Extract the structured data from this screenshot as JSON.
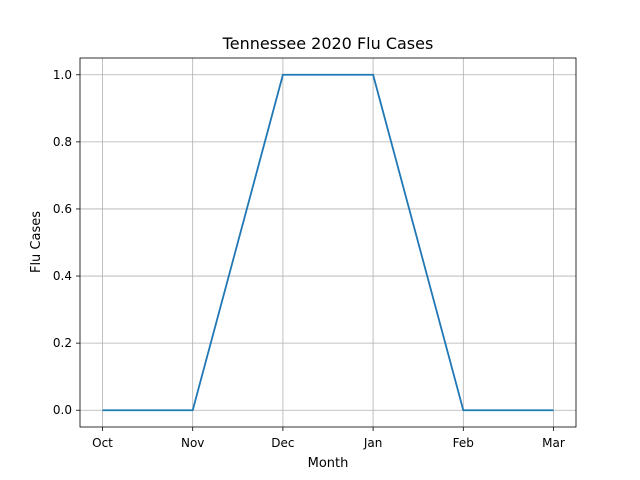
{
  "chart_data": {
    "type": "line",
    "title": "Tennessee 2020 Flu Cases",
    "xlabel": "Month",
    "ylabel": "Flu Cases",
    "categories": [
      "Oct",
      "Nov",
      "Dec",
      "Jan",
      "Feb",
      "Mar"
    ],
    "series": [
      {
        "values": [
          0,
          0,
          1,
          1,
          0,
          0
        ],
        "color": "#1f77b4"
      }
    ],
    "ylim": [
      -0.05,
      1.05
    ],
    "yticks": [
      0.0,
      0.2,
      0.4,
      0.6,
      0.8,
      1.0
    ],
    "ytick_labels": [
      "0.0",
      "0.2",
      "0.4",
      "0.6",
      "0.8",
      "1.0"
    ],
    "grid": true,
    "legend": false
  }
}
